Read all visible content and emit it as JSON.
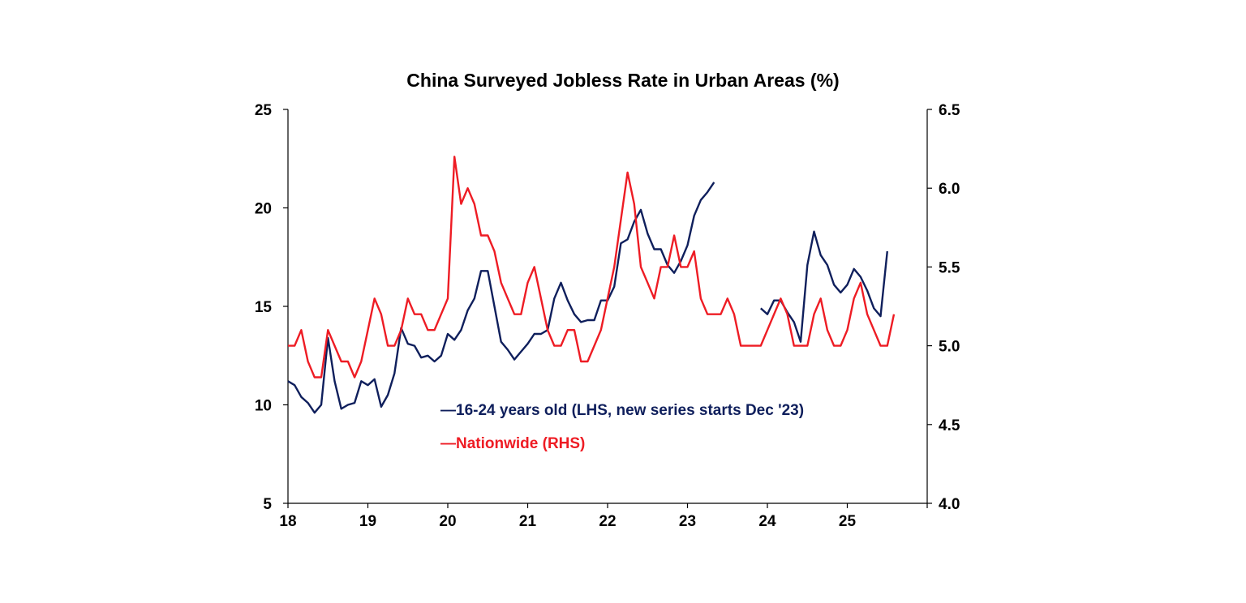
{
  "chart_data": {
    "type": "line",
    "title": "China Surveyed Jobless Rate in Urban Areas (%)",
    "x_ticks": [
      "18",
      "19",
      "20",
      "21",
      "22",
      "23",
      "24",
      "25"
    ],
    "xlim": [
      2018.0,
      2026.0
    ],
    "y_left": {
      "ticks": [
        "5",
        "10",
        "15",
        "20",
        "25"
      ],
      "lim": [
        5,
        25
      ]
    },
    "y_right": {
      "ticks": [
        "4.0",
        "4.5",
        "5.0",
        "5.5",
        "6.0",
        "6.5"
      ],
      "lim": [
        4.0,
        6.5
      ]
    },
    "grid": false,
    "series": [
      {
        "name": "16-24 years old (LHS, new series starts Dec '23)",
        "label": "—16-24 years old (LHS, new series starts Dec '23)",
        "axis": "left",
        "color": "#0f1f5c",
        "segments": [
          {
            "start": "2018-01",
            "values": [
              11.2,
              11.0,
              10.4,
              10.1,
              9.6,
              10.0,
              13.4,
              11.2,
              9.8,
              10.0,
              10.1,
              11.2,
              11.0,
              11.3,
              9.9,
              10.5,
              11.6,
              13.9,
              13.1,
              13.0,
              12.4,
              12.5,
              12.2,
              12.5,
              13.6,
              13.3,
              13.8,
              14.8,
              15.4,
              16.8,
              16.8,
              15.0,
              13.2,
              12.8,
              12.3,
              12.7,
              13.1,
              13.6,
              13.6,
              13.8,
              15.4,
              16.2,
              15.3,
              14.6,
              14.2,
              14.3,
              14.3,
              15.3,
              15.3,
              16.0,
              18.2,
              18.4,
              19.3,
              19.9,
              18.7,
              17.9,
              17.9,
              17.1,
              16.7,
              17.3,
              18.1,
              19.6,
              20.4,
              20.8,
              21.3
            ]
          },
          {
            "start": "2023-12",
            "values": [
              14.9,
              14.6,
              15.3,
              15.3,
              14.7,
              14.2,
              13.2,
              17.1,
              18.8,
              17.6,
              17.1,
              16.1,
              15.7,
              16.1,
              16.9,
              16.5,
              15.8,
              14.9,
              14.5,
              17.8
            ]
          }
        ]
      },
      {
        "name": "Nationwide (RHS)",
        "label": "—Nationwide (RHS)",
        "axis": "right",
        "color": "#ee1c24",
        "segments": [
          {
            "start": "2018-01",
            "values": [
              5.0,
              5.0,
              5.1,
              4.9,
              4.8,
              4.8,
              5.1,
              5.0,
              4.9,
              4.9,
              4.8,
              4.9,
              5.1,
              5.3,
              5.2,
              5.0,
              5.0,
              5.1,
              5.3,
              5.2,
              5.2,
              5.1,
              5.1,
              5.2,
              5.3,
              6.2,
              5.9,
              6.0,
              5.9,
              5.7,
              5.7,
              5.6,
              5.4,
              5.3,
              5.2,
              5.2,
              5.4,
              5.5,
              5.3,
              5.1,
              5.0,
              5.0,
              5.1,
              5.1,
              4.9,
              4.9,
              5.0,
              5.1,
              5.3,
              5.5,
              5.8,
              6.1,
              5.9,
              5.5,
              5.4,
              5.3,
              5.5,
              5.5,
              5.7,
              5.5,
              5.5,
              5.6,
              5.3,
              5.2,
              5.2,
              5.2,
              5.3,
              5.2,
              5.0,
              5.0,
              5.0,
              5.0,
              5.1,
              5.2,
              5.3,
              5.2,
              5.0,
              5.0,
              5.0,
              5.2,
              5.3,
              5.1,
              5.0,
              5.0,
              5.1,
              5.3,
              5.4,
              5.2,
              5.1,
              5.0,
              5.0,
              5.2
            ]
          }
        ]
      }
    ]
  }
}
